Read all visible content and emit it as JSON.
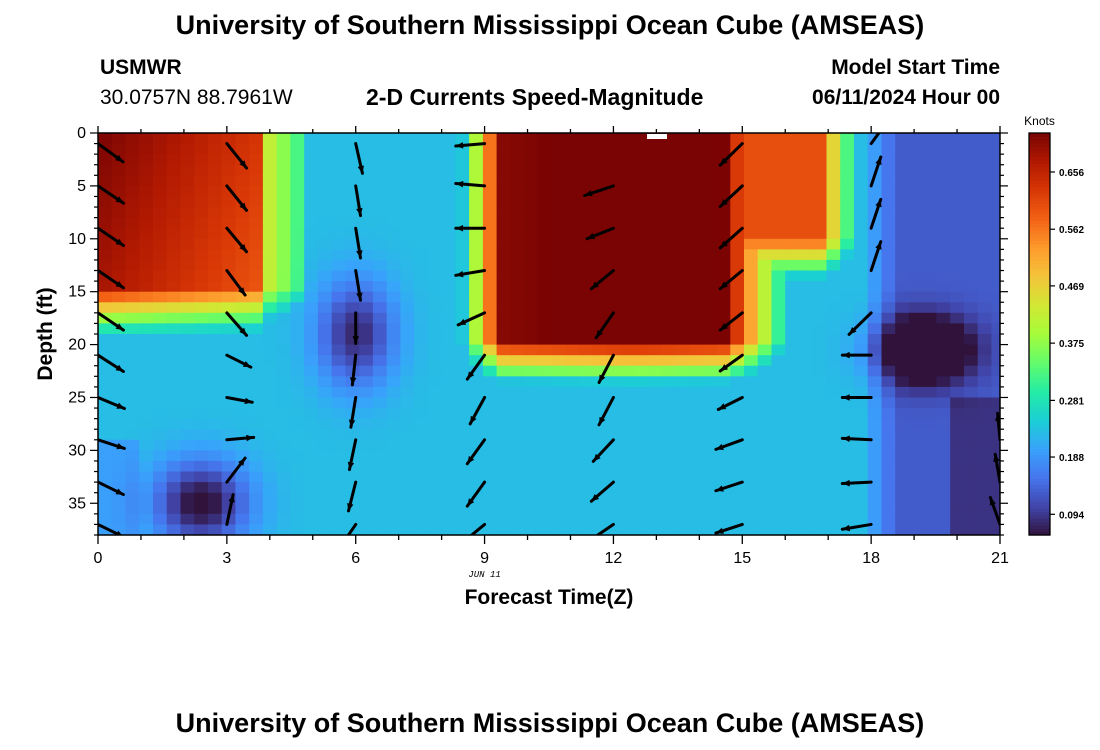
{
  "header": {
    "title": "University of Southern Mississippi Ocean Cube (AMSEAS)",
    "station": "USMWR",
    "coords": "30.0757N  88.7961W",
    "subtitle": "2-D Currents Speed-Magnitude",
    "model_start_label": "Model Start Time",
    "model_start_value": "06/11/2024 Hour 00"
  },
  "footer": {
    "title": "University of Southern Mississippi Ocean Cube (AMSEAS)"
  },
  "chart_data": {
    "type": "heatmap",
    "title": "2-D Currents Speed-Magnitude",
    "xlabel": "Forecast Time(Z)",
    "ylabel": "Depth (ft)",
    "date_label": "JUN 11",
    "xlim": [
      0,
      21
    ],
    "ylim": [
      0,
      38
    ],
    "x_ticks": [
      0,
      3,
      6,
      9,
      12,
      15,
      18,
      21
    ],
    "x_tick_labels": [
      "0",
      "3",
      "6",
      "9",
      "12",
      "15",
      "18",
      "21"
    ],
    "y_ticks": [
      0,
      5,
      10,
      15,
      20,
      25,
      30,
      35
    ],
    "y_tick_labels": [
      "0",
      "5",
      "10",
      "15",
      "20",
      "25",
      "30",
      "35"
    ],
    "colorbar": {
      "label": "Knots",
      "min": 0.06,
      "max": 0.72,
      "tick_values": [
        0.094,
        0.188,
        0.281,
        0.375,
        0.469,
        0.562,
        0.656
      ],
      "tick_labels": [
        "0.094",
        "0.188",
        "0.281",
        "0.375",
        "0.469",
        "0.562",
        "0.656"
      ]
    },
    "colormap": [
      "#30123b",
      "#4145ab",
      "#4675ed",
      "#39a2fc",
      "#1bcfd4",
      "#24eca6",
      "#61fc6c",
      "#a4fc3b",
      "#d1e834",
      "#f3c63a",
      "#fe9b2d",
      "#f36315",
      "#d93806",
      "#b11901",
      "#7a0403"
    ],
    "vector_times": [
      0,
      3,
      6,
      9,
      12,
      15,
      18,
      21
    ],
    "vector_depths": [
      1,
      5,
      9,
      13,
      17,
      21,
      25,
      29,
      33,
      37
    ],
    "vectors": [
      [
        [
          0.52,
          -0.38
        ],
        [
          0.53,
          -0.36
        ],
        [
          0.53,
          -0.36
        ],
        [
          0.53,
          -0.36
        ],
        [
          0.53,
          -0.36
        ],
        [
          0.53,
          -0.34
        ],
        [
          0.55,
          -0.23
        ],
        [
          0.55,
          -0.18
        ],
        [
          0.53,
          -0.26
        ],
        [
          0.53,
          -0.26
        ]
      ],
      [
        [
          0.41,
          -0.51
        ],
        [
          0.41,
          -0.51
        ],
        [
          0.41,
          -0.49
        ],
        [
          0.38,
          -0.51
        ],
        [
          0.41,
          -0.47
        ],
        [
          0.5,
          -0.25
        ],
        [
          0.53,
          -0.1
        ],
        [
          0.56,
          0.05
        ],
        [
          0.38,
          0.5
        ],
        [
          0.13,
          0.62
        ]
      ],
      [
        [
          0.14,
          -0.62
        ],
        [
          0.1,
          -0.62
        ],
        [
          0.1,
          -0.62
        ],
        [
          0.1,
          -0.62
        ],
        [
          0.0,
          -0.64
        ],
        [
          -0.07,
          -0.62
        ],
        [
          -0.1,
          -0.62
        ],
        [
          -0.13,
          -0.62
        ],
        [
          -0.15,
          -0.6
        ],
        [
          -0.34,
          -0.5
        ]
      ],
      [
        [
          -0.6,
          -0.05
        ],
        [
          -0.6,
          0.05
        ],
        [
          -0.6,
          0.0
        ],
        [
          -0.6,
          -0.1
        ],
        [
          -0.55,
          -0.25
        ],
        [
          -0.36,
          -0.5
        ],
        [
          -0.3,
          -0.55
        ],
        [
          -0.36,
          -0.5
        ],
        [
          -0.36,
          -0.5
        ],
        [
          -0.46,
          -0.38
        ]
      ],
      [
        [
          0.0,
          0.0
        ],
        [
          -0.6,
          -0.2
        ],
        [
          -0.55,
          -0.22
        ],
        [
          -0.46,
          -0.38
        ],
        [
          -0.36,
          -0.52
        ],
        [
          -0.3,
          -0.57
        ],
        [
          -0.3,
          -0.57
        ],
        [
          -0.42,
          -0.45
        ],
        [
          -0.46,
          -0.4
        ],
        [
          -0.5,
          -0.34
        ]
      ],
      [
        [
          -0.46,
          -0.45
        ],
        [
          -0.46,
          -0.43
        ],
        [
          -0.46,
          -0.41
        ],
        [
          -0.46,
          -0.38
        ],
        [
          -0.46,
          -0.36
        ],
        [
          -0.46,
          -0.33
        ],
        [
          -0.5,
          -0.25
        ],
        [
          -0.55,
          -0.2
        ],
        [
          -0.55,
          -0.18
        ],
        [
          -0.55,
          -0.18
        ]
      ],
      [
        [
          0.38,
          0.52
        ],
        [
          0.2,
          0.6
        ],
        [
          0.2,
          0.6
        ],
        [
          0.2,
          0.6
        ],
        [
          -0.46,
          -0.45
        ],
        [
          -0.6,
          0.0
        ],
        [
          -0.6,
          0.0
        ],
        [
          -0.6,
          0.03
        ],
        [
          -0.6,
          -0.03
        ],
        [
          -0.6,
          -0.1
        ]
      ],
      [
        [
          0.0,
          0.0
        ],
        [
          0.0,
          0.0
        ],
        [
          0.0,
          0.0
        ],
        [
          0.0,
          0.0
        ],
        [
          0.0,
          0.0
        ],
        [
          0.0,
          0.0
        ],
        [
          0.0,
          0.0
        ],
        [
          -0.05,
          0.55
        ],
        [
          -0.1,
          0.58
        ],
        [
          -0.2,
          0.56
        ]
      ]
    ]
  }
}
